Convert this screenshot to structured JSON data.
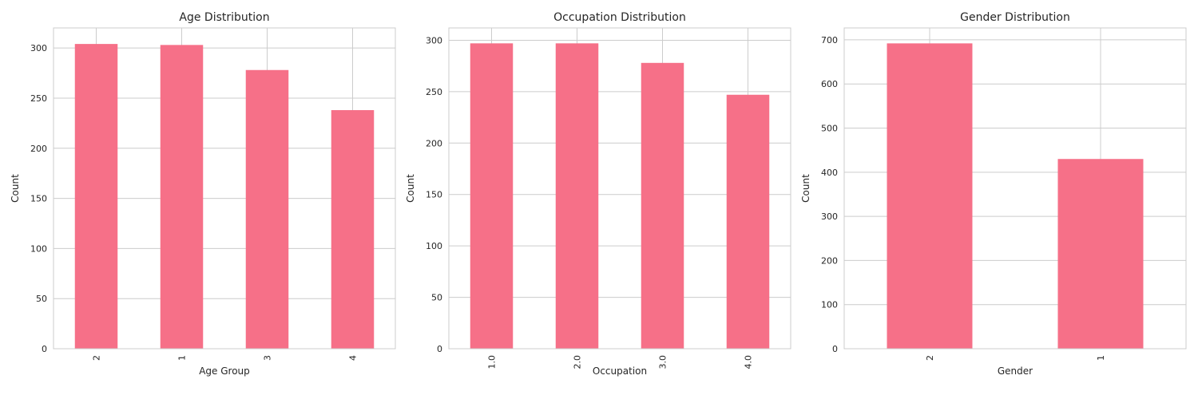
{
  "chart_data": [
    {
      "type": "bar",
      "title": "Age Distribution",
      "xlabel": "Age Group",
      "ylabel": "Count",
      "categories": [
        "2",
        "1",
        "3",
        "4"
      ],
      "values": [
        304,
        303,
        278,
        238
      ],
      "ylim": [
        0,
        320
      ],
      "yticks": [
        0,
        50,
        100,
        150,
        200,
        250,
        300
      ],
      "grid": true,
      "bar_color": "#f67088"
    },
    {
      "type": "bar",
      "title": "Occupation Distribution",
      "xlabel": "Occupation",
      "ylabel": "Count",
      "categories": [
        "1.0",
        "2.0",
        "3.0",
        "4.0"
      ],
      "values": [
        297,
        297,
        278,
        247
      ],
      "ylim": [
        0,
        312
      ],
      "yticks": [
        0,
        50,
        100,
        150,
        200,
        250,
        300
      ],
      "grid": true,
      "bar_color": "#f67088"
    },
    {
      "type": "bar",
      "title": "Gender Distribution",
      "xlabel": "Gender",
      "ylabel": "Count",
      "categories": [
        "2",
        "1"
      ],
      "values": [
        692,
        430
      ],
      "ylim": [
        0,
        727
      ],
      "yticks": [
        0,
        100,
        200,
        300,
        400,
        500,
        600,
        700
      ],
      "grid": true,
      "bar_color": "#f67088"
    }
  ]
}
